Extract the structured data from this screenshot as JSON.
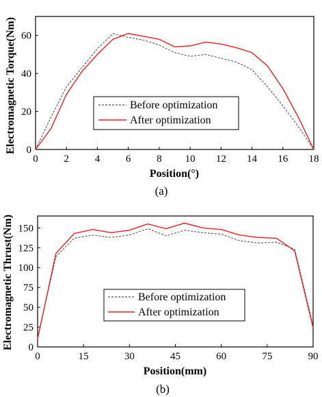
{
  "chart_data": [
    {
      "type": "line",
      "caption": "(a)",
      "xlabel": "Position(°)",
      "ylabel": "Electromagnetic Torque(Nm)",
      "xlim": [
        0,
        18
      ],
      "ylim": [
        0,
        70
      ],
      "xticks": [
        0,
        2,
        4,
        6,
        8,
        10,
        12,
        14,
        16,
        18
      ],
      "yticks": [
        0,
        20,
        40,
        60
      ],
      "legend_position": "center",
      "x": [
        0,
        1,
        2,
        3,
        4,
        5,
        6,
        7,
        8,
        9,
        10,
        11,
        12,
        13,
        14,
        15,
        16,
        17,
        18
      ],
      "series": [
        {
          "name": "Before optimization",
          "style": "dashed",
          "color": "#555555",
          "values": [
            0,
            17,
            33,
            43,
            53,
            61,
            59,
            57.5,
            55,
            51,
            49,
            50,
            48,
            46,
            42,
            33,
            23,
            12,
            0
          ]
        },
        {
          "name": "After optimization",
          "style": "solid",
          "color": "#ee1c1c",
          "values": [
            0,
            11,
            29,
            41,
            50,
            58,
            61,
            59.5,
            58,
            54,
            54.5,
            56.5,
            55.5,
            53.5,
            51,
            44,
            32,
            17,
            0
          ]
        }
      ]
    },
    {
      "type": "line",
      "caption": "(b)",
      "xlabel": "Position(mm)",
      "ylabel": "Electromagnetic Thrust(Nm)",
      "xlim": [
        0,
        90
      ],
      "ylim": [
        0,
        165
      ],
      "xticks": [
        0,
        15,
        30,
        45,
        60,
        75,
        90
      ],
      "yticks": [
        0,
        25,
        50,
        75,
        100,
        125,
        150
      ],
      "legend_position": "bottom-center",
      "x": [
        0,
        6,
        12,
        18,
        24,
        30,
        36,
        42,
        48,
        54,
        60,
        66,
        72,
        78,
        84,
        90
      ],
      "series": [
        {
          "name": "Before optimization",
          "style": "dashed",
          "color": "#555555",
          "values": [
            12,
            114,
            137,
            141,
            138,
            141,
            149,
            140,
            147,
            144,
            142,
            134,
            131,
            132,
            123,
            27
          ]
        },
        {
          "name": "After optimization",
          "style": "solid",
          "color": "#ee1c1c",
          "values": [
            10,
            118,
            143,
            148,
            144,
            147,
            155,
            149,
            156,
            150,
            148,
            141,
            138,
            137,
            121,
            24
          ]
        }
      ]
    }
  ]
}
